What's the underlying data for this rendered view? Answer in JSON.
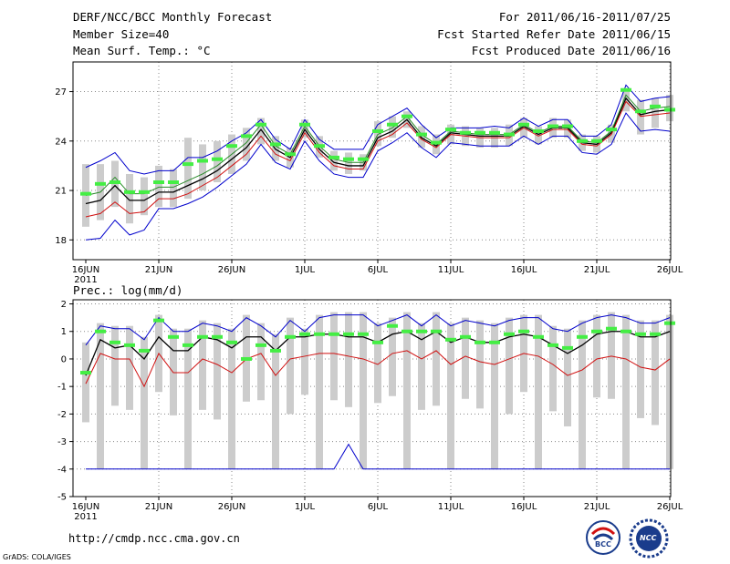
{
  "header": {
    "title": "DERF/NCC/BCC Monthly Forecast",
    "member": "Member Size=40",
    "variable": "Mean Surf. Temp.: °C",
    "period": "For 2011/06/16-2011/07/25",
    "started": "Fcst Started Refer Date 2011/06/15",
    "produced": "Fcst Produced Date 2011/06/16"
  },
  "footer": {
    "url": "http://cmdp.ncc.cma.gov.cn",
    "grads": "GrADS: COLA/IGES",
    "logo_bcc": "BCC",
    "logo_ncc": "NCC"
  },
  "colors": {
    "max": "#0000cc",
    "min": "#d01010",
    "mean": "#000000",
    "obs": "#44ee44",
    "box": "#cccccc"
  },
  "chart_data": [
    {
      "type": "line",
      "title": "Mean Surf. Temp.: °C",
      "xlabel": "",
      "ylabel": "",
      "ylim": [
        16.8,
        28.8
      ],
      "yticks": [
        18,
        21,
        24,
        27
      ],
      "xticks": [
        {
          "i": 0,
          "label": "16JUN"
        },
        {
          "i": 5,
          "label": "21JUN"
        },
        {
          "i": 10,
          "label": "26JUN"
        },
        {
          "i": 15,
          "label": "1JUL"
        },
        {
          "i": 20,
          "label": "6JUL"
        },
        {
          "i": 25,
          "label": "11JUL"
        },
        {
          "i": 30,
          "label": "16JUL"
        },
        {
          "i": 35,
          "label": "21JUL"
        },
        {
          "i": 40,
          "label": "26JUL"
        }
      ],
      "year_label": "2011",
      "series": [
        {
          "name": "max",
          "color": "#0000cc",
          "values": [
            22.4,
            22.8,
            23.3,
            22.2,
            22.0,
            22.2,
            22.2,
            23.0,
            23.0,
            23.4,
            24.0,
            24.5,
            25.3,
            24.1,
            23.5,
            25.3,
            24.1,
            23.5,
            23.5,
            23.5,
            25.0,
            25.5,
            26.0,
            25.0,
            24.2,
            24.8,
            24.8,
            24.8,
            24.9,
            24.8,
            25.4,
            24.9,
            25.3,
            25.3,
            24.3,
            24.3,
            25.0,
            27.4,
            26.4,
            26.6,
            26.7
          ]
        },
        {
          "name": "mean",
          "color": "#000000",
          "values": [
            20.2,
            20.4,
            21.3,
            20.4,
            20.4,
            20.9,
            20.9,
            21.3,
            21.7,
            22.2,
            22.9,
            23.6,
            24.7,
            23.5,
            23.0,
            24.7,
            23.5,
            22.7,
            22.5,
            22.5,
            24.2,
            24.6,
            25.3,
            24.2,
            23.7,
            24.5,
            24.4,
            24.3,
            24.3,
            24.3,
            24.9,
            24.4,
            24.8,
            24.8,
            23.9,
            23.8,
            24.5,
            26.6,
            25.6,
            25.8,
            25.9
          ]
        },
        {
          "name": "red",
          "color": "#d01010",
          "values": [
            19.4,
            19.6,
            20.3,
            19.6,
            19.7,
            20.5,
            20.5,
            20.8,
            21.3,
            21.8,
            22.5,
            23.2,
            24.3,
            23.2,
            22.8,
            24.5,
            23.3,
            22.5,
            22.3,
            22.3,
            24.0,
            24.4,
            25.1,
            24.1,
            23.6,
            24.4,
            24.3,
            24.2,
            24.2,
            24.2,
            24.8,
            24.3,
            24.7,
            24.7,
            23.8,
            23.7,
            24.4,
            26.4,
            25.5,
            25.6,
            25.7
          ]
        },
        {
          "name": "green",
          "color": "#2a8a2a",
          "values": [
            20.7,
            20.9,
            21.8,
            20.8,
            20.8,
            21.2,
            21.2,
            21.6,
            22.0,
            22.5,
            23.2,
            23.9,
            25.0,
            23.7,
            23.2,
            24.9,
            23.7,
            22.9,
            22.7,
            22.7,
            24.4,
            24.8,
            25.5,
            24.4,
            23.8,
            24.6,
            24.5,
            24.4,
            24.4,
            24.4,
            25.0,
            24.5,
            24.9,
            24.9,
            24.0,
            23.9,
            24.6,
            26.8,
            25.8,
            26.0,
            26.1
          ]
        },
        {
          "name": "min",
          "color": "#0000cc",
          "values": [
            18.0,
            18.1,
            19.2,
            18.3,
            18.6,
            19.9,
            19.9,
            20.2,
            20.6,
            21.2,
            21.9,
            22.6,
            23.8,
            22.7,
            22.3,
            24.0,
            22.8,
            22.0,
            21.8,
            21.8,
            23.4,
            23.9,
            24.5,
            23.6,
            23.0,
            23.9,
            23.8,
            23.7,
            23.7,
            23.7,
            24.3,
            23.8,
            24.3,
            24.3,
            23.3,
            23.2,
            23.8,
            25.7,
            24.6,
            24.7,
            24.6
          ]
        }
      ],
      "obs": [
        20.8,
        21.4,
        21.5,
        20.9,
        20.9,
        21.5,
        21.5,
        22.6,
        22.8,
        22.9,
        23.7,
        24.3,
        25.0,
        23.8,
        23.2,
        25.0,
        23.7,
        23.0,
        22.9,
        22.9,
        24.6,
        25.0,
        25.5,
        24.4,
        23.9,
        24.7,
        24.5,
        24.5,
        24.5,
        24.4,
        25.0,
        24.6,
        24.9,
        24.9,
        24.0,
        24.0,
        24.7,
        27.1,
        25.8,
        26.1,
        25.9
      ],
      "boxes": [
        [
          18.8,
          22.6
        ],
        [
          19.2,
          22.6
        ],
        [
          20.0,
          22.8
        ],
        [
          19.0,
          22.0
        ],
        [
          19.5,
          21.8
        ],
        [
          20.0,
          22.5
        ],
        [
          20.0,
          22.3
        ],
        [
          20.5,
          24.2
        ],
        [
          21.0,
          23.8
        ],
        [
          21.5,
          24.0
        ],
        [
          22.0,
          24.4
        ],
        [
          22.8,
          24.8
        ],
        [
          23.8,
          25.4
        ],
        [
          22.8,
          24.3
        ],
        [
          22.4,
          23.6
        ],
        [
          24.2,
          25.3
        ],
        [
          23.0,
          24.3
        ],
        [
          22.2,
          23.4
        ],
        [
          22.0,
          23.3
        ],
        [
          22.2,
          23.2
        ],
        [
          23.7,
          25.2
        ],
        [
          24.2,
          25.5
        ],
        [
          24.8,
          25.8
        ],
        [
          23.6,
          24.9
        ],
        [
          23.2,
          24.4
        ],
        [
          23.8,
          25.0
        ],
        [
          23.7,
          24.9
        ],
        [
          23.6,
          24.8
        ],
        [
          23.6,
          24.8
        ],
        [
          23.7,
          25.0
        ],
        [
          24.2,
          25.4
        ],
        [
          23.8,
          24.9
        ],
        [
          24.2,
          25.4
        ],
        [
          24.2,
          25.3
        ],
        [
          23.4,
          24.4
        ],
        [
          23.3,
          24.3
        ],
        [
          23.9,
          25.0
        ],
        [
          25.8,
          27.2
        ],
        [
          24.4,
          26.5
        ],
        [
          24.8,
          26.6
        ],
        [
          25.2,
          26.8
        ]
      ]
    },
    {
      "type": "line",
      "title": "Prec.: log(mm/d)",
      "xlabel": "",
      "ylabel": "",
      "ylim": [
        -5,
        2.15
      ],
      "yticks": [
        -5,
        -4,
        -3,
        -2,
        -1,
        0,
        1,
        2
      ],
      "xticks": [
        {
          "i": 0,
          "label": "16JUN"
        },
        {
          "i": 5,
          "label": "21JUN"
        },
        {
          "i": 10,
          "label": "26JUN"
        },
        {
          "i": 15,
          "label": "1JUL"
        },
        {
          "i": 20,
          "label": "6JUL"
        },
        {
          "i": 25,
          "label": "11JUL"
        },
        {
          "i": 30,
          "label": "16JUL"
        },
        {
          "i": 35,
          "label": "21JUL"
        },
        {
          "i": 40,
          "label": "26JUL"
        }
      ],
      "year_label": "2011",
      "series": [
        {
          "name": "max",
          "color": "#0000cc",
          "values": [
            0.5,
            1.2,
            1.1,
            1.1,
            0.7,
            1.5,
            1.0,
            1.0,
            1.3,
            1.2,
            1.0,
            1.5,
            1.2,
            0.8,
            1.4,
            1.0,
            1.5,
            1.6,
            1.6,
            1.6,
            1.2,
            1.4,
            1.6,
            1.2,
            1.6,
            1.2,
            1.4,
            1.3,
            1.2,
            1.4,
            1.5,
            1.5,
            1.1,
            1.0,
            1.3,
            1.5,
            1.6,
            1.5,
            1.3,
            1.3,
            1.5
          ]
        },
        {
          "name": "mean",
          "color": "#000000",
          "values": [
            -0.6,
            0.7,
            0.4,
            0.5,
            0.0,
            0.8,
            0.3,
            0.3,
            0.8,
            0.7,
            0.4,
            0.8,
            0.8,
            0.3,
            0.8,
            0.8,
            0.9,
            0.9,
            0.8,
            0.8,
            0.6,
            0.9,
            1.0,
            0.7,
            1.0,
            0.6,
            0.8,
            0.6,
            0.6,
            0.8,
            0.9,
            0.8,
            0.5,
            0.2,
            0.5,
            0.9,
            1.0,
            1.0,
            0.8,
            0.8,
            1.0
          ]
        },
        {
          "name": "min",
          "color": "#d01010",
          "values": [
            -0.9,
            0.2,
            0.0,
            0.0,
            -1.0,
            0.2,
            -0.5,
            -0.5,
            0.0,
            -0.2,
            -0.5,
            0.0,
            0.2,
            -0.6,
            0.0,
            0.1,
            0.2,
            0.2,
            0.1,
            0.0,
            -0.2,
            0.2,
            0.3,
            0.0,
            0.3,
            -0.2,
            0.1,
            -0.1,
            -0.2,
            0.0,
            0.2,
            0.1,
            -0.2,
            -0.6,
            -0.4,
            0.0,
            0.1,
            0.0,
            -0.3,
            -0.4,
            0.0
          ]
        },
        {
          "name": "bottom",
          "color": "#0000cc",
          "values": [
            -4,
            -4,
            -4,
            -4,
            -4,
            -4,
            -4,
            -4,
            -4,
            -4,
            -4,
            -4,
            -4,
            -4,
            -4,
            -4,
            -4,
            -4,
            -3.1,
            -4,
            -4,
            -4,
            -4,
            -4,
            -4,
            -4,
            -4,
            -4,
            -4,
            -4,
            -4,
            -4,
            -4,
            -4,
            -4,
            -4,
            -4,
            -4,
            -4,
            -4,
            -4
          ]
        }
      ],
      "obs": [
        -0.5,
        1.0,
        0.6,
        0.5,
        0.3,
        1.4,
        0.8,
        0.5,
        0.8,
        0.8,
        0.6,
        0.0,
        0.5,
        0.3,
        0.8,
        0.9,
        0.9,
        0.9,
        0.9,
        0.9,
        0.6,
        1.2,
        1.0,
        1.0,
        1.0,
        0.7,
        0.8,
        0.6,
        0.6,
        0.9,
        1.0,
        0.8,
        0.5,
        0.4,
        0.8,
        1.0,
        1.1,
        1.0,
        0.9,
        0.9,
        1.3
      ]
    }
  ]
}
